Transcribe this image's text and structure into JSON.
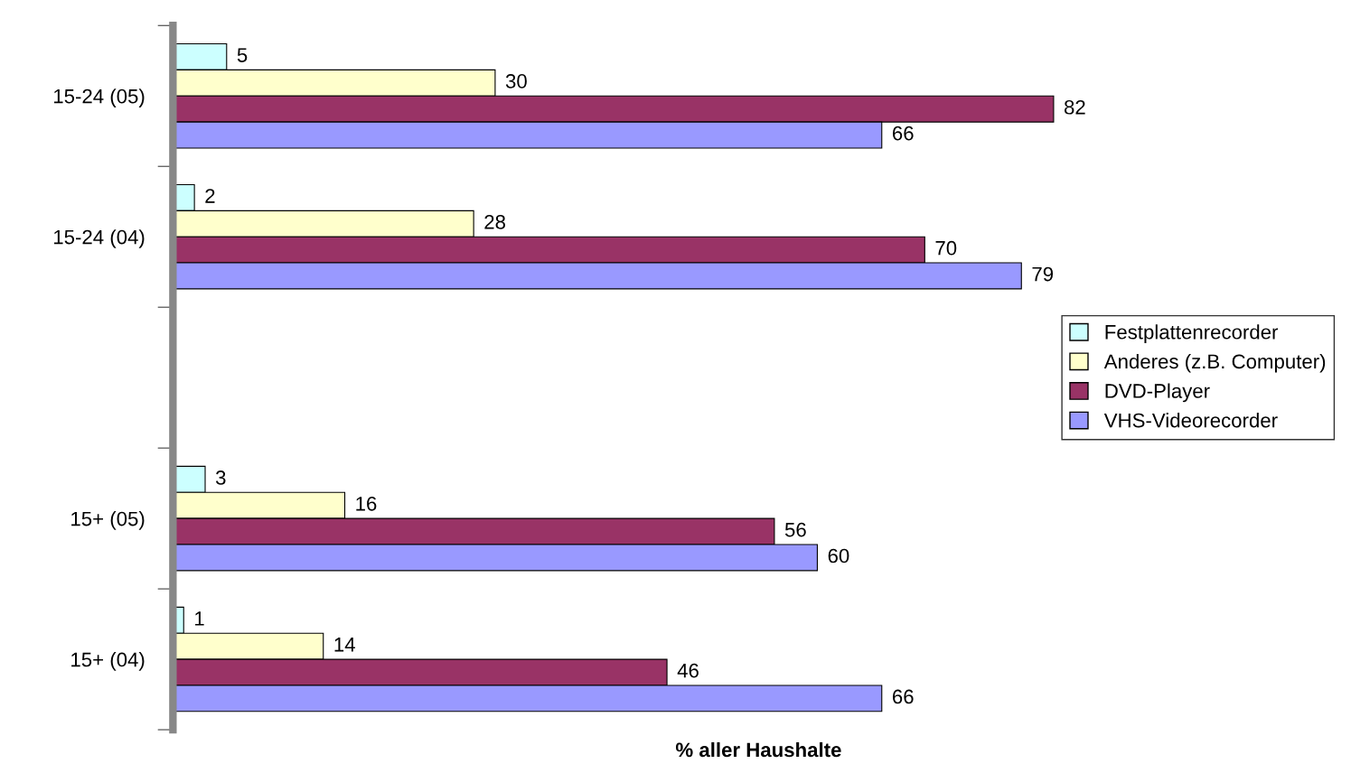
{
  "chart_data": {
    "type": "bar",
    "orientation": "horizontal",
    "xlabel": "% aller Haushalte",
    "categories": [
      "15-24 (05)",
      "15-24 (04)",
      null,
      "15+ (05)",
      "15+ (04)"
    ],
    "series": [
      {
        "name": "Festplattenrecorder",
        "color": "#ccffff",
        "values": [
          5,
          2,
          null,
          3,
          1
        ]
      },
      {
        "name": "Anderes (z.B. Computer)",
        "color": "#ffffcc",
        "values": [
          30,
          28,
          null,
          16,
          14
        ]
      },
      {
        "name": "DVD-Player",
        "color": "#993366",
        "values": [
          82,
          70,
          null,
          56,
          46
        ]
      },
      {
        "name": "VHS-Videorecorder",
        "color": "#9999ff",
        "values": [
          66,
          79,
          null,
          60,
          66
        ]
      }
    ],
    "data_labels": true,
    "legend": "right",
    "grid": false,
    "tick_labels": "y"
  }
}
